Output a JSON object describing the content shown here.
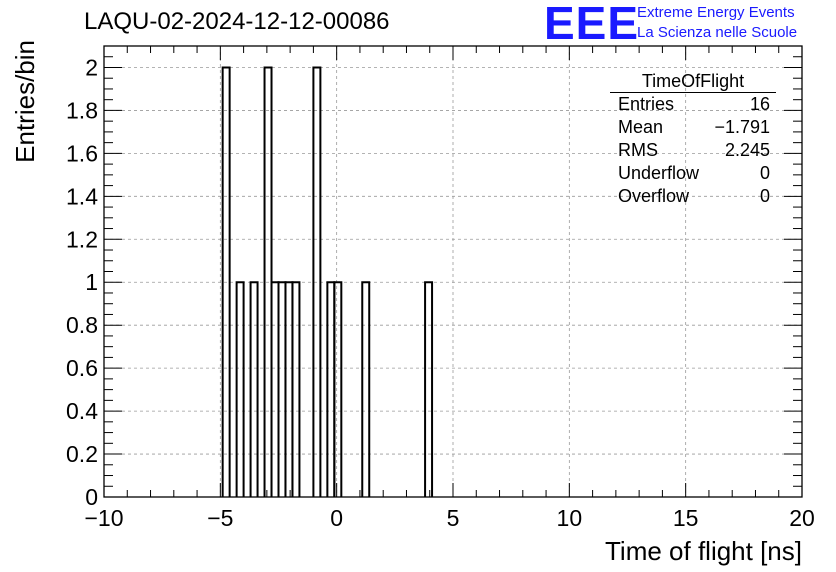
{
  "header": {
    "title": "LAQU-02-2024-12-12-00086",
    "logo_text": "EEE",
    "logo_line1": "Extreme Energy Events",
    "logo_line2": "La Scienza nelle Scuole",
    "logo_color": "#1a1aff"
  },
  "stats": {
    "name": "TimeOfFlight",
    "rows": [
      {
        "label": "Entries",
        "value": "16"
      },
      {
        "label": "Mean",
        "value": "−1.791"
      },
      {
        "label": "RMS",
        "value": "2.245"
      },
      {
        "label": "Underflow",
        "value": "0"
      },
      {
        "label": "Overflow",
        "value": "0"
      }
    ]
  },
  "chart_data": {
    "type": "histogram",
    "title": "LAQU-02-2024-12-12-00086",
    "xlabel": "Time of flight [ns]",
    "ylabel": "Entries/bin",
    "xlim": [
      -10,
      20
    ],
    "ylim": [
      0,
      2.1
    ],
    "grid": true,
    "bin_width": 0.3,
    "bins": [
      {
        "x0": -4.9,
        "x1": -4.6,
        "count": 2
      },
      {
        "x0": -4.3,
        "x1": -4.0,
        "count": 1
      },
      {
        "x0": -3.7,
        "x1": -3.4,
        "count": 1
      },
      {
        "x0": -3.1,
        "x1": -2.8,
        "count": 2
      },
      {
        "x0": -2.8,
        "x1": -2.5,
        "count": 1
      },
      {
        "x0": -2.5,
        "x1": -2.2,
        "count": 1
      },
      {
        "x0": -2.2,
        "x1": -1.9,
        "count": 1
      },
      {
        "x0": -1.9,
        "x1": -1.6,
        "count": 1
      },
      {
        "x0": -1.0,
        "x1": -0.7,
        "count": 2
      },
      {
        "x0": -0.4,
        "x1": -0.1,
        "count": 1
      },
      {
        "x0": -0.1,
        "x1": 0.2,
        "count": 1
      },
      {
        "x0": 1.1,
        "x1": 1.4,
        "count": 1
      },
      {
        "x0": 3.8,
        "x1": 4.1,
        "count": 1
      }
    ],
    "xticks": [
      "-10",
      "-5",
      "0",
      "5",
      "10",
      "15",
      "20"
    ],
    "yticks": [
      "0",
      "0.2",
      "0.4",
      "0.6",
      "0.8",
      "1",
      "1.2",
      "1.4",
      "1.6",
      "1.8",
      "2"
    ]
  }
}
